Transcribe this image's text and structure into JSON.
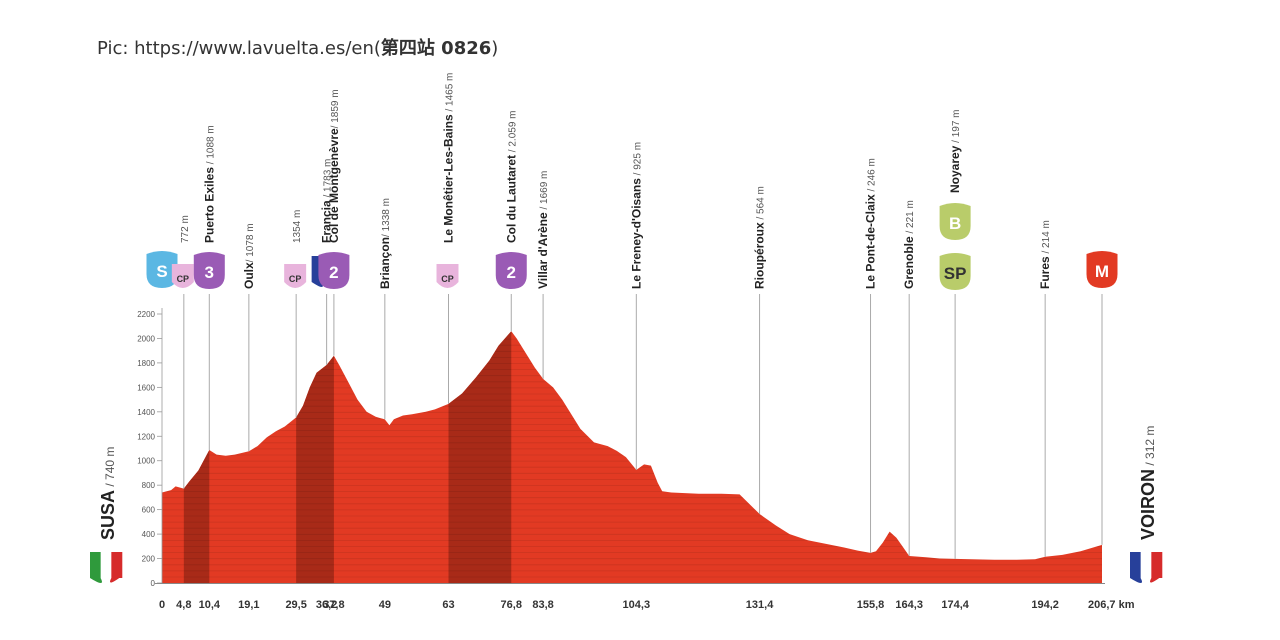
{
  "caption": {
    "prefix": "Pic: https://www.lavuelta.es/en(",
    "bold": "第四站 0826",
    "suffix": ")"
  },
  "colors": {
    "profile_fill": "#e23a23",
    "climb_fill": "#a82a18",
    "cp_badge": "#e8b4dc",
    "cat_badge": "#9a5bb5",
    "start_badge": "#5bb7e3",
    "bonus_badge": "#b9cc6a",
    "finish_badge": "#e23a23",
    "flag_italy": [
      "#2f9a3c",
      "#ffffff",
      "#d62b2b"
    ],
    "flag_france": [
      "#27409a",
      "#ffffff",
      "#d62b2b"
    ]
  },
  "chart_data": {
    "type": "area",
    "xlabel": "km",
    "ylim": [
      0,
      2200
    ],
    "yticks": [
      0,
      200,
      400,
      600,
      800,
      1000,
      1200,
      1400,
      1600,
      1800,
      2000,
      2200
    ],
    "xlim": [
      0,
      206.7
    ],
    "xticks": [
      {
        "value": 0,
        "label": "0"
      },
      {
        "value": 4.8,
        "label": "4,8"
      },
      {
        "value": 10.4,
        "label": "10,4"
      },
      {
        "value": 19.1,
        "label": "19,1"
      },
      {
        "value": 29.5,
        "label": "29,5"
      },
      {
        "value": 36.2,
        "label": "36,2"
      },
      {
        "value": 37.8,
        "label": "37,8"
      },
      {
        "value": 49,
        "label": "49"
      },
      {
        "value": 63,
        "label": "63"
      },
      {
        "value": 76.8,
        "label": "76,8"
      },
      {
        "value": 83.8,
        "label": "83,8"
      },
      {
        "value": 104.3,
        "label": "104,3"
      },
      {
        "value": 131.4,
        "label": "131,4"
      },
      {
        "value": 155.8,
        "label": "155,8"
      },
      {
        "value": 164.3,
        "label": "164,3"
      },
      {
        "value": 174.4,
        "label": "174,4"
      },
      {
        "value": 194.2,
        "label": "194,2"
      },
      {
        "value": 206.7,
        "label": "206,7 km"
      }
    ],
    "profile": [
      [
        0,
        740
      ],
      [
        2,
        760
      ],
      [
        3,
        790
      ],
      [
        4.8,
        772
      ],
      [
        6,
        830
      ],
      [
        8,
        920
      ],
      [
        10.4,
        1088
      ],
      [
        12,
        1050
      ],
      [
        14,
        1040
      ],
      [
        16,
        1050
      ],
      [
        19.1,
        1078
      ],
      [
        21,
        1120
      ],
      [
        23,
        1190
      ],
      [
        25,
        1240
      ],
      [
        27,
        1280
      ],
      [
        29.5,
        1354
      ],
      [
        31,
        1450
      ],
      [
        32.5,
        1600
      ],
      [
        34,
        1720
      ],
      [
        36.2,
        1783
      ],
      [
        37.8,
        1859
      ],
      [
        39,
        1780
      ],
      [
        41,
        1640
      ],
      [
        43,
        1500
      ],
      [
        45,
        1400
      ],
      [
        47,
        1360
      ],
      [
        49,
        1338
      ],
      [
        50,
        1290
      ],
      [
        51,
        1340
      ],
      [
        53,
        1370
      ],
      [
        55,
        1380
      ],
      [
        58,
        1400
      ],
      [
        60,
        1420
      ],
      [
        63,
        1465
      ],
      [
        66,
        1550
      ],
      [
        69,
        1680
      ],
      [
        72,
        1820
      ],
      [
        74,
        1940
      ],
      [
        76.8,
        2059
      ],
      [
        78,
        2000
      ],
      [
        80,
        1880
      ],
      [
        82,
        1760
      ],
      [
        83.8,
        1669
      ],
      [
        86,
        1600
      ],
      [
        88,
        1500
      ],
      [
        90,
        1380
      ],
      [
        92,
        1260
      ],
      [
        95,
        1150
      ],
      [
        98,
        1120
      ],
      [
        100,
        1080
      ],
      [
        102,
        1030
      ],
      [
        104.3,
        925
      ],
      [
        106,
        970
      ],
      [
        107.5,
        960
      ],
      [
        109,
        820
      ],
      [
        110,
        750
      ],
      [
        112,
        740
      ],
      [
        118,
        730
      ],
      [
        123,
        730
      ],
      [
        127,
        725
      ],
      [
        131.4,
        564
      ],
      [
        135,
        470
      ],
      [
        138,
        400
      ],
      [
        142,
        350
      ],
      [
        146,
        320
      ],
      [
        150,
        290
      ],
      [
        153,
        265
      ],
      [
        155.8,
        246
      ],
      [
        157,
        260
      ],
      [
        158.5,
        330
      ],
      [
        160,
        420
      ],
      [
        161.5,
        370
      ],
      [
        163,
        290
      ],
      [
        164.3,
        221
      ],
      [
        168,
        210
      ],
      [
        171,
        200
      ],
      [
        174.4,
        197
      ],
      [
        178,
        195
      ],
      [
        183,
        190
      ],
      [
        188,
        190
      ],
      [
        192,
        195
      ],
      [
        194.2,
        214
      ],
      [
        198,
        230
      ],
      [
        202,
        260
      ],
      [
        206.7,
        312
      ]
    ],
    "climbs": [
      [
        4.8,
        10.4
      ],
      [
        29.5,
        37.8
      ],
      [
        63,
        76.8
      ]
    ],
    "points": [
      {
        "km": 0,
        "alt": 740,
        "badge": "start",
        "badge_text": "S",
        "name": "",
        "alt_label": ""
      },
      {
        "km": 4.8,
        "alt": 772,
        "badge": "cp",
        "badge_text": "CP",
        "name": "",
        "alt_label": "772 m"
      },
      {
        "km": 10.4,
        "alt": 1088,
        "badge": "cat",
        "badge_text": "3",
        "name": "Puerto Exiles",
        "alt_label": " / 1088 m"
      },
      {
        "km": 19.1,
        "alt": 1078,
        "badge": "",
        "badge_text": "",
        "name": "Oulx",
        "alt_label": "/ 1078 m"
      },
      {
        "km": 29.5,
        "alt": 1354,
        "badge": "cp",
        "badge_text": "CP",
        "name": "",
        "alt_label": "1354 m"
      },
      {
        "km": 36.2,
        "alt": 1783,
        "badge": "flag",
        "badge_text": "",
        "name": "Francia",
        "alt_label": " / 1783 m"
      },
      {
        "km": 37.8,
        "alt": 1859,
        "badge": "cat",
        "badge_text": "2",
        "name": "Col de Montgenèvre",
        "alt_label": "/ 1859 m"
      },
      {
        "km": 49,
        "alt": 1338,
        "badge": "",
        "badge_text": "",
        "name": "Briançon",
        "alt_label": "/ 1338 m"
      },
      {
        "km": 63,
        "alt": 1465,
        "badge": "cp",
        "badge_text": "CP",
        "name": "Le Monêtier-Les-Bains",
        "alt_label": " / 1465 m"
      },
      {
        "km": 76.8,
        "alt": 2059,
        "badge": "cat",
        "badge_text": "2",
        "name": "Col du Lautaret",
        "alt_label": " / 2.059 m"
      },
      {
        "km": 83.8,
        "alt": 1669,
        "badge": "",
        "badge_text": "",
        "name": "Villar d'Arène",
        "alt_label": " / 1669 m"
      },
      {
        "km": 104.3,
        "alt": 925,
        "badge": "",
        "badge_text": "",
        "name": "Le Freney-d'Oisans",
        "alt_label": " / 925 m"
      },
      {
        "km": 131.4,
        "alt": 564,
        "badge": "",
        "badge_text": "",
        "name": "Rioupéroux",
        "alt_label": " / 564 m"
      },
      {
        "km": 155.8,
        "alt": 246,
        "badge": "",
        "badge_text": "",
        "name": "Le Pont-de-Claix",
        "alt_label": " / 246 m"
      },
      {
        "km": 164.3,
        "alt": 221,
        "badge": "",
        "badge_text": "",
        "name": "Grenoble",
        "alt_label": " / 221 m"
      },
      {
        "km": 174.4,
        "alt": 197,
        "badge": "sp",
        "badge_text": "SP",
        "badge2_text": "B",
        "name": "Noyarey",
        "alt_label": " / 197 m"
      },
      {
        "km": 194.2,
        "alt": 214,
        "badge": "",
        "badge_text": "",
        "name": "Fures",
        "alt_label": " / 214 m"
      },
      {
        "km": 206.7,
        "alt": 312,
        "badge": "finish",
        "badge_text": "M",
        "name": "",
        "alt_label": ""
      }
    ],
    "start": {
      "name": "SUSA",
      "alt_label": "/ 740 m",
      "flag": "italy"
    },
    "finish": {
      "name": "VOIRON",
      "alt_label": "/ 312 m",
      "flag": "france"
    }
  }
}
